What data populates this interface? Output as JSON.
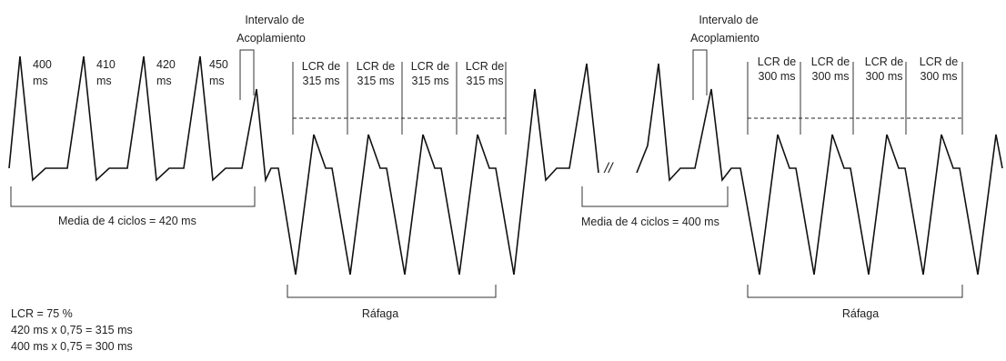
{
  "coupling_labels": [
    [
      "Intervalo de",
      "Acoplamiento"
    ],
    [
      "Intervalo de",
      "Acoplamiento"
    ]
  ],
  "intervals": [
    [
      "400",
      "ms"
    ],
    [
      "410",
      "ms"
    ],
    [
      "420",
      "ms"
    ],
    [
      "450",
      "ms"
    ]
  ],
  "burst_cycles_left": [
    [
      "LCR de",
      "315 ms"
    ],
    [
      "LCR de",
      "315 ms"
    ],
    [
      "LCR de",
      "315 ms"
    ],
    [
      "LCR de",
      "315 ms"
    ]
  ],
  "burst_cycles_right": [
    [
      "LCR de",
      "300 ms"
    ],
    [
      "LCR de",
      "300 ms"
    ],
    [
      "LCR de",
      "300 ms"
    ],
    [
      "LCR de",
      "300 ms"
    ]
  ],
  "averages": [
    "Media de 4 ciclos = 420 ms",
    "Media de 4 ciclos = 400 ms"
  ],
  "bursts": [
    "Ráfaga",
    "Ráfaga"
  ],
  "break_mark": "//",
  "notes": [
    "LCR = 75 %",
    "420 ms x 0,75 = 315 ms",
    "400 ms x 0,75 = 300 ms"
  ]
}
